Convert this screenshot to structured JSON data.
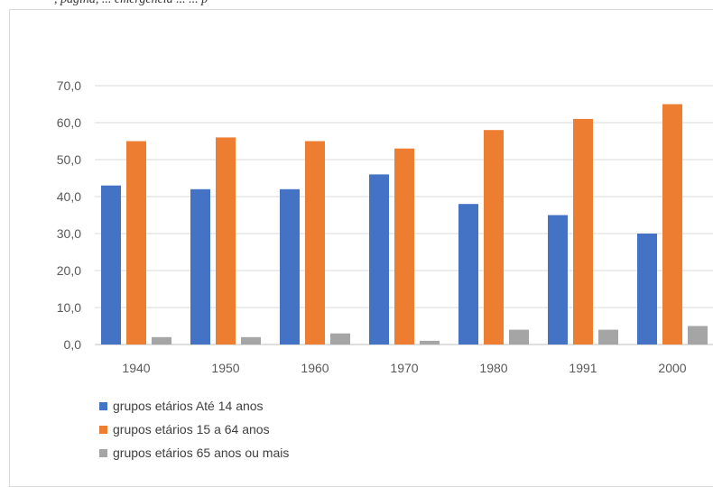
{
  "header_fragment": ", pagina, ... emergencia ... ... p",
  "chart_data": {
    "type": "bar",
    "categories": [
      "1940",
      "1950",
      "1960",
      "1970",
      "1980",
      "1991",
      "2000"
    ],
    "series": [
      {
        "name": "grupos etários Até 14 anos",
        "color": "#4472c4",
        "values": [
          43,
          42,
          42,
          46,
          38,
          35,
          30
        ]
      },
      {
        "name": "grupos etários 15 a 64 anos",
        "color": "#ed7d31",
        "values": [
          55,
          56,
          55,
          53,
          58,
          61,
          65
        ]
      },
      {
        "name": "grupos etários 65 anos ou mais",
        "color": "#a5a5a5",
        "values": [
          2,
          2,
          3,
          1,
          4,
          4,
          5
        ]
      }
    ],
    "ylim": [
      0,
      70
    ],
    "yticks": [
      "0,0",
      "10,0",
      "20,0",
      "30,0",
      "40,0",
      "50,0",
      "60,0",
      "70,0"
    ],
    "grid": true,
    "legend": "bottom-left"
  }
}
